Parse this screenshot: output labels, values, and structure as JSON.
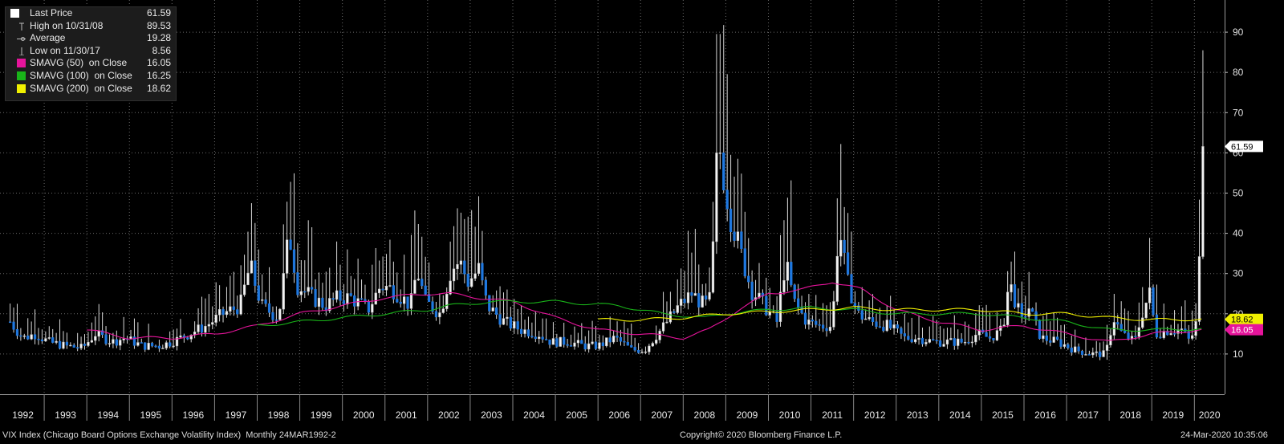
{
  "legend": {
    "items": [
      {
        "label": "Last Price",
        "value": "61.59",
        "icon": "square-white"
      },
      {
        "label": "High on 10/31/08",
        "value": "89.53",
        "icon": "high-marker"
      },
      {
        "label": "Average",
        "value": "19.28",
        "icon": "average-marker"
      },
      {
        "label": "Low on 11/30/17",
        "value": "8.56",
        "icon": "low-marker"
      },
      {
        "label": "SMAVG (50)  on Close",
        "value": "16.05",
        "color": "#e6149b"
      },
      {
        "label": "SMAVG (100)  on Close",
        "value": "16.25",
        "color": "#19b419"
      },
      {
        "label": "SMAVG (200)  on Close",
        "value": "18.62",
        "color": "#f0f000"
      }
    ]
  },
  "value_tags": {
    "last": "61.59",
    "smavg200": "18.62",
    "smavg50": "16.05"
  },
  "footer": {
    "left": "VIX Index (Chicago Board Options Exchange Volatility Index)  Monthly 24MAR1992-2",
    "center": "Copyright© 2020 Bloomberg Finance L.P.",
    "right": "24-Mar-2020 10:35:06"
  },
  "chart_data": {
    "type": "candlestick",
    "title": "",
    "ylim": [
      0,
      98
    ],
    "y_ticks": [
      10,
      20,
      30,
      40,
      50,
      60,
      70,
      80,
      90
    ],
    "x_years": [
      "1992",
      "1993",
      "1994",
      "1995",
      "1996",
      "1997",
      "1998",
      "1999",
      "2000",
      "2001",
      "2002",
      "2003",
      "2004",
      "2005",
      "2006",
      "2007",
      "2008",
      "2009",
      "2010",
      "2011",
      "2012",
      "2013",
      "2014",
      "2015",
      "2016",
      "2017",
      "2018",
      "2019",
      "2020"
    ],
    "grid": true,
    "last_price": 61.59,
    "high": {
      "date": "10/31/08",
      "value": 89.53
    },
    "low": {
      "date": "11/30/17",
      "value": 8.56
    },
    "average": 19.28,
    "monthly_close_anchors": [
      [
        1992.2,
        18
      ],
      [
        1992.5,
        14
      ],
      [
        1992.8,
        15
      ],
      [
        1993.1,
        13
      ],
      [
        1993.5,
        12
      ],
      [
        1993.9,
        11.5
      ],
      [
        1994.2,
        15
      ],
      [
        1994.6,
        13
      ],
      [
        1994.9,
        14
      ],
      [
        1995.3,
        12
      ],
      [
        1995.7,
        12
      ],
      [
        1996.0,
        13
      ],
      [
        1996.4,
        15
      ],
      [
        1996.8,
        17
      ],
      [
        1997.2,
        20
      ],
      [
        1997.6,
        22
      ],
      [
        1997.83,
        32
      ],
      [
        1998.1,
        22
      ],
      [
        1998.5,
        19
      ],
      [
        1998.75,
        40
      ],
      [
        1998.95,
        27
      ],
      [
        1999.3,
        24
      ],
      [
        1999.6,
        22
      ],
      [
        1999.9,
        24
      ],
      [
        2000.2,
        24
      ],
      [
        2000.6,
        21
      ],
      [
        2000.9,
        27
      ],
      [
        2001.2,
        26
      ],
      [
        2001.6,
        22
      ],
      [
        2001.75,
        31
      ],
      [
        2001.95,
        23
      ],
      [
        2002.3,
        20
      ],
      [
        2002.55,
        31
      ],
      [
        2002.75,
        33
      ],
      [
        2002.95,
        28
      ],
      [
        2003.2,
        31
      ],
      [
        2003.4,
        22
      ],
      [
        2003.8,
        18
      ],
      [
        2004.2,
        16
      ],
      [
        2004.6,
        15
      ],
      [
        2004.9,
        13
      ],
      [
        2005.3,
        13
      ],
      [
        2005.7,
        12
      ],
      [
        2006.0,
        12
      ],
      [
        2006.4,
        14
      ],
      [
        2006.8,
        11
      ],
      [
        2007.1,
        11
      ],
      [
        2007.55,
        17
      ],
      [
        2007.9,
        22
      ],
      [
        2008.2,
        25
      ],
      [
        2008.5,
        22
      ],
      [
        2008.65,
        24
      ],
      [
        2008.8,
        60
      ],
      [
        2008.9,
        58
      ],
      [
        2009.1,
        45
      ],
      [
        2009.3,
        37
      ],
      [
        2009.6,
        26
      ],
      [
        2009.9,
        22
      ],
      [
        2010.2,
        18
      ],
      [
        2010.4,
        33
      ],
      [
        2010.6,
        23
      ],
      [
        2010.9,
        18
      ],
      [
        2011.2,
        17
      ],
      [
        2011.5,
        17
      ],
      [
        2011.65,
        42
      ],
      [
        2011.85,
        28
      ],
      [
        2012.1,
        20
      ],
      [
        2012.4,
        18
      ],
      [
        2012.8,
        17
      ],
      [
        2013.2,
        14
      ],
      [
        2013.5,
        14
      ],
      [
        2013.9,
        13
      ],
      [
        2014.2,
        13
      ],
      [
        2014.6,
        13
      ],
      [
        2014.9,
        15
      ],
      [
        2015.2,
        14
      ],
      [
        2015.5,
        16
      ],
      [
        2015.65,
        28
      ],
      [
        2015.95,
        18
      ],
      [
        2016.1,
        22
      ],
      [
        2016.4,
        14
      ],
      [
        2016.8,
        13
      ],
      [
        2017.2,
        11
      ],
      [
        2017.6,
        10
      ],
      [
        2017.92,
        10
      ],
      [
        2018.1,
        19
      ],
      [
        2018.3,
        15
      ],
      [
        2018.6,
        13
      ],
      [
        2018.8,
        21
      ],
      [
        2018.95,
        25
      ],
      [
        2019.1,
        15
      ],
      [
        2019.4,
        16
      ],
      [
        2019.7,
        16
      ],
      [
        2019.9,
        13
      ],
      [
        2020.05,
        18
      ],
      [
        2020.15,
        40
      ],
      [
        2020.22,
        61.59
      ]
    ],
    "smavg50_anchors": [
      [
        1994.0,
        16
      ],
      [
        1995.0,
        14
      ],
      [
        1996.0,
        14
      ],
      [
        1997.0,
        15
      ],
      [
        1998.0,
        17
      ],
      [
        1999.0,
        20
      ],
      [
        2000.0,
        22
      ],
      [
        2001.0,
        24
      ],
      [
        2002.0,
        25
      ],
      [
        2002.5,
        25
      ],
      [
        2003.2,
        24
      ],
      [
        2004.0,
        23
      ],
      [
        2005.0,
        19
      ],
      [
        2006.0,
        16
      ],
      [
        2007.0,
        15
      ],
      [
        2008.0,
        14
      ],
      [
        2008.6,
        16
      ],
      [
        2009.3,
        21
      ],
      [
        2010.0,
        25
      ],
      [
        2010.8,
        26
      ],
      [
        2011.5,
        28
      ],
      [
        2012.2,
        26
      ],
      [
        2013.0,
        21
      ],
      [
        2014.0,
        18
      ],
      [
        2015.0,
        16
      ],
      [
        2016.0,
        17
      ],
      [
        2017.0,
        15
      ],
      [
        2018.0,
        13
      ],
      [
        2019.0,
        15
      ],
      [
        2020.22,
        16.05
      ]
    ],
    "smavg100_anchors": [
      [
        1998.0,
        17
      ],
      [
        1999.0,
        18
      ],
      [
        2000.0,
        19
      ],
      [
        2001.0,
        20
      ],
      [
        2002.0,
        21
      ],
      [
        2002.5,
        22
      ],
      [
        2003.5,
        23
      ],
      [
        2005.0,
        23
      ],
      [
        2006.5,
        22
      ],
      [
        2007.5,
        20
      ],
      [
        2008.5,
        19
      ],
      [
        2009.0,
        20
      ],
      [
        2010.0,
        21
      ],
      [
        2011.0,
        21.5
      ],
      [
        2012.0,
        21
      ],
      [
        2013.0,
        20
      ],
      [
        2014.0,
        20
      ],
      [
        2015.0,
        20
      ],
      [
        2016.0,
        19
      ],
      [
        2017.0,
        18
      ],
      [
        2018.0,
        16
      ],
      [
        2019.0,
        16
      ],
      [
        2020.22,
        16.25
      ]
    ],
    "smavg200_anchors": [
      [
        2006.0,
        18.5
      ],
      [
        2007.0,
        18.5
      ],
      [
        2008.0,
        19
      ],
      [
        2009.0,
        20
      ],
      [
        2010.0,
        20.5
      ],
      [
        2011.0,
        21
      ],
      [
        2012.0,
        21.5
      ],
      [
        2013.0,
        21
      ],
      [
        2014.0,
        21
      ],
      [
        2015.0,
        21
      ],
      [
        2016.0,
        20
      ],
      [
        2017.0,
        20
      ],
      [
        2018.0,
        19
      ],
      [
        2019.0,
        18.5
      ],
      [
        2020.22,
        18.62
      ]
    ]
  }
}
